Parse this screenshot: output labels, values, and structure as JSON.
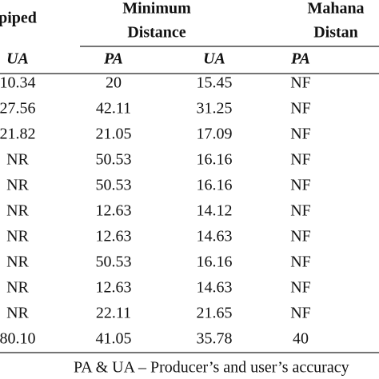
{
  "table": {
    "header": [
      [
        "piped"
      ],
      [
        "Minimum",
        "Distance"
      ],
      [
        "Mahana",
        "Distan"
      ]
    ],
    "subheader": [
      "UA",
      "PA",
      "UA",
      "PA"
    ],
    "rows": [
      [
        "10.34",
        "20",
        "15.45",
        "NF"
      ],
      [
        "27.56",
        "42.11",
        "31.25",
        "NF"
      ],
      [
        "21.82",
        "21.05",
        "17.09",
        "NF"
      ],
      [
        "NR",
        "50.53",
        "16.16",
        "NF"
      ],
      [
        "NR",
        "50.53",
        "16.16",
        "NF"
      ],
      [
        "NR",
        "12.63",
        "14.12",
        "NF"
      ],
      [
        "NR",
        "12.63",
        "14.63",
        "NF"
      ],
      [
        "NR",
        "50.53",
        "16.16",
        "NF"
      ],
      [
        "NR",
        "12.63",
        "14.63",
        "NF"
      ],
      [
        "NR",
        "22.11",
        "21.65",
        "NF"
      ],
      [
        "80.10",
        "41.05",
        "35.78",
        "40"
      ]
    ],
    "footnote": "PA & UA – Producer’s and user’s accuracy"
  }
}
